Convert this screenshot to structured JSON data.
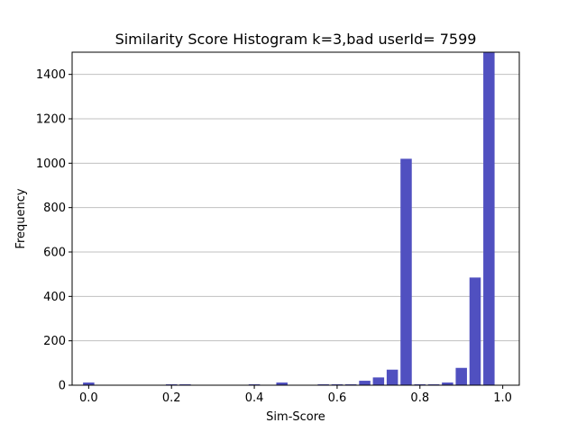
{
  "chart_data": {
    "type": "bar",
    "title": "Similarity Score Histogram k=3,bad userId= 7599",
    "xlabel": "Sim-Score",
    "ylabel": "Frequency",
    "xlim": [
      -0.04,
      1.04
    ],
    "ylim": [
      0,
      1500
    ],
    "xticks": [
      0.0,
      0.2,
      0.4,
      0.6,
      0.8,
      1.0
    ],
    "xtick_labels": [
      "0.0",
      "0.2",
      "0.4",
      "0.6",
      "0.8",
      "1.0"
    ],
    "yticks": [
      0,
      200,
      400,
      600,
      800,
      1000,
      1200,
      1400
    ],
    "ytick_labels": [
      "0",
      "200",
      "400",
      "600",
      "800",
      "1000",
      "1200",
      "1400"
    ],
    "grid": "horizontal",
    "bar_color": "#5050c0",
    "x": [
      0.0,
      0.2,
      0.233,
      0.4,
      0.4667,
      0.5667,
      0.6,
      0.6333,
      0.6667,
      0.7,
      0.7333,
      0.7667,
      0.8,
      0.8333,
      0.8667,
      0.9,
      0.9333,
      0.9667
    ],
    "values": [
      12,
      4,
      4,
      4,
      12,
      4,
      4,
      4,
      20,
      35,
      70,
      1020,
      4,
      4,
      12,
      78,
      485,
      1500
    ]
  }
}
